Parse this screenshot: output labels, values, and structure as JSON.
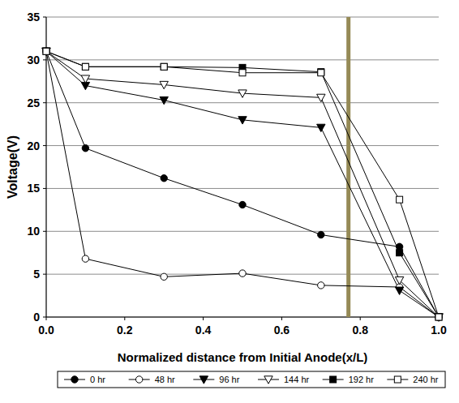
{
  "chart_data": {
    "type": "line",
    "x_label": "Normalized distance from Initial Anode(x/L)",
    "y_label": "Voltage(V)",
    "x": [
      0,
      0.1,
      0.3,
      0.5,
      0.7,
      0.9,
      1.0
    ],
    "series": [
      {
        "name": "0 hr",
        "color": "#000000",
        "marker": "filled-circle",
        "values": [
          31,
          19.7,
          16.2,
          13.1,
          9.6,
          8.2,
          0
        ]
      },
      {
        "name": "48 hr",
        "color": "#000000",
        "marker": "open-circle",
        "values": [
          31,
          6.8,
          4.7,
          5.1,
          3.7,
          3.5,
          0
        ]
      },
      {
        "name": "96 hr",
        "color": "#000000",
        "marker": "filled-triangle-down",
        "values": [
          31,
          27,
          25.3,
          23,
          22.1,
          3.1,
          0
        ]
      },
      {
        "name": "144 hr",
        "color": "#000000",
        "marker": "open-triangle-down",
        "values": [
          31,
          27.8,
          27.1,
          26.1,
          25.6,
          4.3,
          0
        ]
      },
      {
        "name": "192 hr",
        "color": "#000000",
        "marker": "filled-square",
        "values": [
          31,
          29.2,
          29.2,
          29.1,
          28.6,
          7.5,
          0
        ]
      },
      {
        "name": "240 hr",
        "color": "#000000",
        "marker": "open-square",
        "values": [
          31,
          29.2,
          29.2,
          28.5,
          28.5,
          13.7,
          0
        ]
      }
    ],
    "xlim": [
      0,
      1.0
    ],
    "xticks": [
      {
        "value": 0,
        "label": "0.0"
      },
      {
        "value": 0.2,
        "label": "0.2"
      },
      {
        "value": 0.4,
        "label": "0.4"
      },
      {
        "value": 0.6,
        "label": "0.6"
      },
      {
        "value": 0.8,
        "label": "0.8"
      },
      {
        "value": 1.0,
        "label": "1.0"
      }
    ],
    "ylim": [
      0,
      35
    ],
    "yticks": [
      0,
      5,
      10,
      15,
      20,
      25,
      30,
      35
    ],
    "grid": true,
    "legend": "bottom",
    "reference_line": {
      "x": 0.77,
      "color": "#958a56"
    }
  }
}
